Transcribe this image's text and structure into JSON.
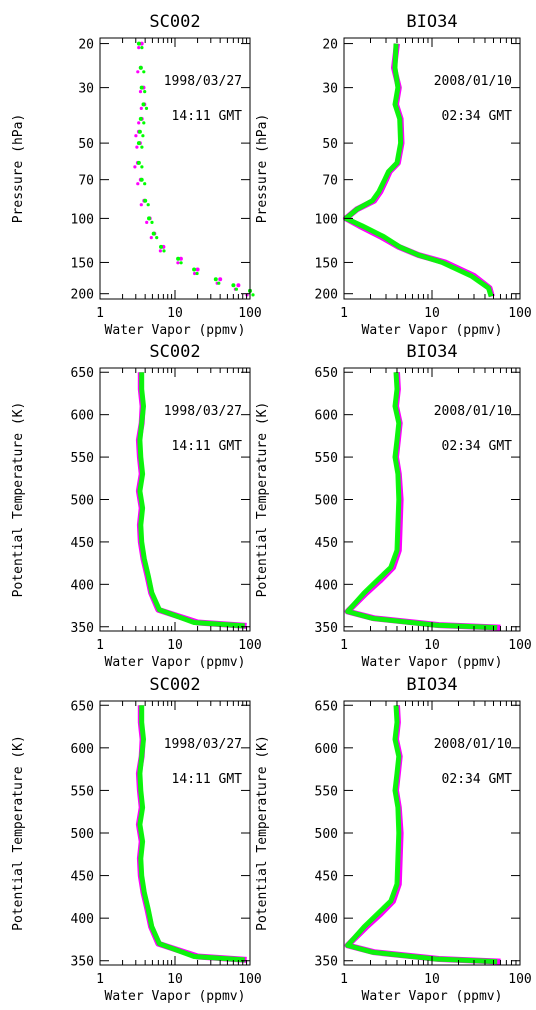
{
  "palette": {
    "series_a": "#ff00ff",
    "series_b": "#00ff00",
    "frame": "#000000"
  },
  "chart_data": [
    {
      "type": "scatter",
      "title": "SC002",
      "xlabel": "Water Vapor (ppmv)",
      "ylabel": "Pressure (hPa)",
      "xscale": "log",
      "xlim": [
        1,
        100
      ],
      "xticks": [
        "1",
        "10",
        "100"
      ],
      "yscale": "log",
      "ylim": [
        210,
        19
      ],
      "yticks": [
        "20",
        "30",
        "50",
        "70",
        "100",
        "150",
        "200"
      ],
      "annotations": [
        "1998/03/27",
        "14:11 GMT"
      ],
      "series": [
        {
          "color": "#ff00ff",
          "x": [
            3.6,
            3.5,
            3.8,
            3.9,
            3.6,
            3.3,
            3.4,
            3.2,
            3.5,
            3.9,
            4.6,
            5.3,
            7.0,
            12.0,
            20.0,
            40.0,
            70.0,
            100
          ],
          "y": [
            20,
            25,
            30,
            35,
            40,
            45,
            50,
            60,
            70,
            85,
            100,
            115,
            130,
            145,
            160,
            175,
            185,
            195
          ]
        },
        {
          "color": "#00ff00",
          "x": [
            3.3,
            3.5,
            3.6,
            3.8,
            3.5,
            3.4,
            3.3,
            3.3,
            3.6,
            4.0,
            4.5,
            5.2,
            6.5,
            11.0,
            18.0,
            35.0,
            60.0,
            100
          ],
          "y": [
            20,
            25,
            30,
            35,
            40,
            45,
            50,
            60,
            70,
            85,
            100,
            115,
            130,
            145,
            160,
            175,
            185,
            195
          ]
        }
      ]
    },
    {
      "type": "line",
      "title": "BIO34",
      "xlabel": "Water Vapor (ppmv)",
      "ylabel": "Pressure (hPa)",
      "xscale": "log",
      "xlim": [
        1,
        100
      ],
      "xticks": [
        "1",
        "10",
        "100"
      ],
      "yscale": "log",
      "ylim": [
        210,
        19
      ],
      "yticks": [
        "20",
        "30",
        "50",
        "70",
        "100",
        "150",
        "200"
      ],
      "annotations": [
        "2008/01/10",
        "02:34 GMT"
      ],
      "series": [
        {
          "color": "#ff00ff",
          "x": [
            4.0,
            3.7,
            4.2,
            3.9,
            4.4,
            4.5,
            4.1,
            3.3,
            3.0,
            2.6,
            2.2,
            1.4,
            1.05,
            1.5,
            2.6,
            4.2,
            7.0,
            14.0,
            30.0,
            45.0,
            48.0
          ],
          "y": [
            20,
            25,
            30,
            35,
            40,
            50,
            60,
            65,
            70,
            78,
            85,
            92,
            100,
            107,
            118,
            130,
            140,
            150,
            170,
            190,
            205
          ]
        },
        {
          "color": "#00ff00",
          "x": [
            3.9,
            3.8,
            4.1,
            3.8,
            4.3,
            4.4,
            4.0,
            3.2,
            2.9,
            2.5,
            2.1,
            1.4,
            1.05,
            1.6,
            2.8,
            4.3,
            7.0,
            13.0,
            28.0,
            44.0,
            47.0
          ],
          "y": [
            20,
            25,
            30,
            35,
            40,
            50,
            60,
            65,
            70,
            78,
            85,
            92,
            100,
            107,
            118,
            130,
            140,
            150,
            170,
            190,
            205
          ]
        }
      ]
    },
    {
      "type": "line",
      "title": "SC002",
      "xlabel": "Water Vapor (ppmv)",
      "ylabel": "Potential Temperature (K)",
      "xscale": "log",
      "xlim": [
        1,
        100
      ],
      "xticks": [
        "1",
        "10",
        "100"
      ],
      "ylim": [
        345,
        655
      ],
      "yticks": [
        "350",
        "400",
        "450",
        "500",
        "550",
        "600",
        "650"
      ],
      "annotations": [
        "1998/03/27",
        "14:11 GMT"
      ],
      "series": [
        {
          "color": "#ff00ff",
          "x": [
            3.5,
            3.5,
            3.7,
            3.6,
            3.3,
            3.4,
            3.6,
            3.3,
            3.6,
            3.4,
            3.5,
            3.8,
            4.3,
            4.8,
            6.0,
            20.0,
            90.0
          ],
          "y": [
            650,
            630,
            610,
            590,
            570,
            550,
            530,
            510,
            490,
            470,
            450,
            430,
            410,
            390,
            370,
            355,
            351
          ]
        },
        {
          "color": "#00ff00",
          "x": [
            3.6,
            3.6,
            3.8,
            3.6,
            3.4,
            3.5,
            3.7,
            3.4,
            3.7,
            3.5,
            3.6,
            3.9,
            4.4,
            4.9,
            6.2,
            18.0,
            85.0
          ],
          "y": [
            650,
            630,
            610,
            590,
            570,
            550,
            530,
            510,
            490,
            470,
            450,
            430,
            410,
            390,
            370,
            355,
            351
          ]
        }
      ]
    },
    {
      "type": "line",
      "title": "BIO34",
      "xlabel": "Water Vapor (ppmv)",
      "ylabel": "Potential Temperature (K)",
      "xscale": "log",
      "xlim": [
        1,
        100
      ],
      "xticks": [
        "1",
        "10",
        "100"
      ],
      "ylim": [
        345,
        655
      ],
      "yticks": [
        "350",
        "400",
        "450",
        "500",
        "550",
        "600",
        "650"
      ],
      "annotations": [
        "2008/01/10",
        "02:34 GMT"
      ],
      "series": [
        {
          "color": "#ff00ff",
          "x": [
            4.0,
            4.1,
            3.9,
            4.3,
            4.1,
            3.9,
            4.2,
            4.4,
            4.3,
            4.2,
            3.6,
            2.6,
            1.8,
            1.1,
            2.2,
            12.0,
            60.0
          ],
          "y": [
            650,
            630,
            610,
            590,
            570,
            550,
            530,
            500,
            470,
            440,
            420,
            405,
            390,
            368,
            360,
            352,
            349
          ]
        },
        {
          "color": "#00ff00",
          "x": [
            3.9,
            4.0,
            3.8,
            4.2,
            4.0,
            3.8,
            4.1,
            4.2,
            4.1,
            4.0,
            3.4,
            2.4,
            1.7,
            1.1,
            2.1,
            11.0,
            55.0
          ],
          "y": [
            650,
            630,
            610,
            590,
            570,
            550,
            530,
            500,
            470,
            440,
            420,
            405,
            390,
            368,
            360,
            352,
            349
          ]
        }
      ]
    },
    {
      "type": "line",
      "title": "SC002",
      "xlabel": "Water Vapor (ppmv)",
      "ylabel": "Potential Temperature (K)",
      "xscale": "log",
      "xlim": [
        1,
        100
      ],
      "xticks": [
        "1",
        "10",
        "100"
      ],
      "ylim": [
        345,
        655
      ],
      "yticks": [
        "350",
        "400",
        "450",
        "500",
        "550",
        "600",
        "650"
      ],
      "annotations": [
        "1998/03/27",
        "14:11 GMT"
      ],
      "series": [
        {
          "color": "#ff00ff",
          "x": [
            3.5,
            3.5,
            3.7,
            3.6,
            3.3,
            3.4,
            3.6,
            3.3,
            3.6,
            3.4,
            3.5,
            3.8,
            4.3,
            4.8,
            6.0,
            20.0,
            90.0
          ],
          "y": [
            650,
            630,
            610,
            590,
            570,
            550,
            530,
            510,
            490,
            470,
            450,
            430,
            410,
            390,
            370,
            355,
            351
          ]
        },
        {
          "color": "#00ff00",
          "x": [
            3.6,
            3.6,
            3.8,
            3.6,
            3.4,
            3.5,
            3.7,
            3.4,
            3.7,
            3.5,
            3.6,
            3.9,
            4.4,
            4.9,
            6.2,
            18.0,
            85.0
          ],
          "y": [
            650,
            630,
            610,
            590,
            570,
            550,
            530,
            510,
            490,
            470,
            450,
            430,
            410,
            390,
            370,
            355,
            351
          ]
        }
      ]
    },
    {
      "type": "line",
      "title": "BIO34",
      "xlabel": "Water Vapor (ppmv)",
      "ylabel": "Potential Temperature (K)",
      "xscale": "log",
      "xlim": [
        1,
        100
      ],
      "xticks": [
        "1",
        "10",
        "100"
      ],
      "ylim": [
        345,
        655
      ],
      "yticks": [
        "350",
        "400",
        "450",
        "500",
        "550",
        "600",
        "650"
      ],
      "annotations": [
        "2008/01/10",
        "02:34 GMT"
      ],
      "series": [
        {
          "color": "#ff00ff",
          "x": [
            4.0,
            4.1,
            3.9,
            4.3,
            4.1,
            3.9,
            4.2,
            4.4,
            4.3,
            4.2,
            3.6,
            2.6,
            1.8,
            1.1,
            2.2,
            12.0,
            60.0
          ],
          "y": [
            650,
            630,
            610,
            590,
            570,
            550,
            530,
            500,
            470,
            440,
            420,
            405,
            390,
            368,
            360,
            352,
            349
          ]
        },
        {
          "color": "#00ff00",
          "x": [
            3.9,
            4.0,
            3.8,
            4.2,
            4.0,
            3.8,
            4.1,
            4.2,
            4.1,
            4.0,
            3.4,
            2.4,
            1.7,
            1.1,
            2.1,
            11.0,
            55.0
          ],
          "y": [
            650,
            630,
            610,
            590,
            570,
            550,
            530,
            500,
            470,
            440,
            420,
            405,
            390,
            368,
            360,
            352,
            349
          ]
        }
      ]
    }
  ]
}
